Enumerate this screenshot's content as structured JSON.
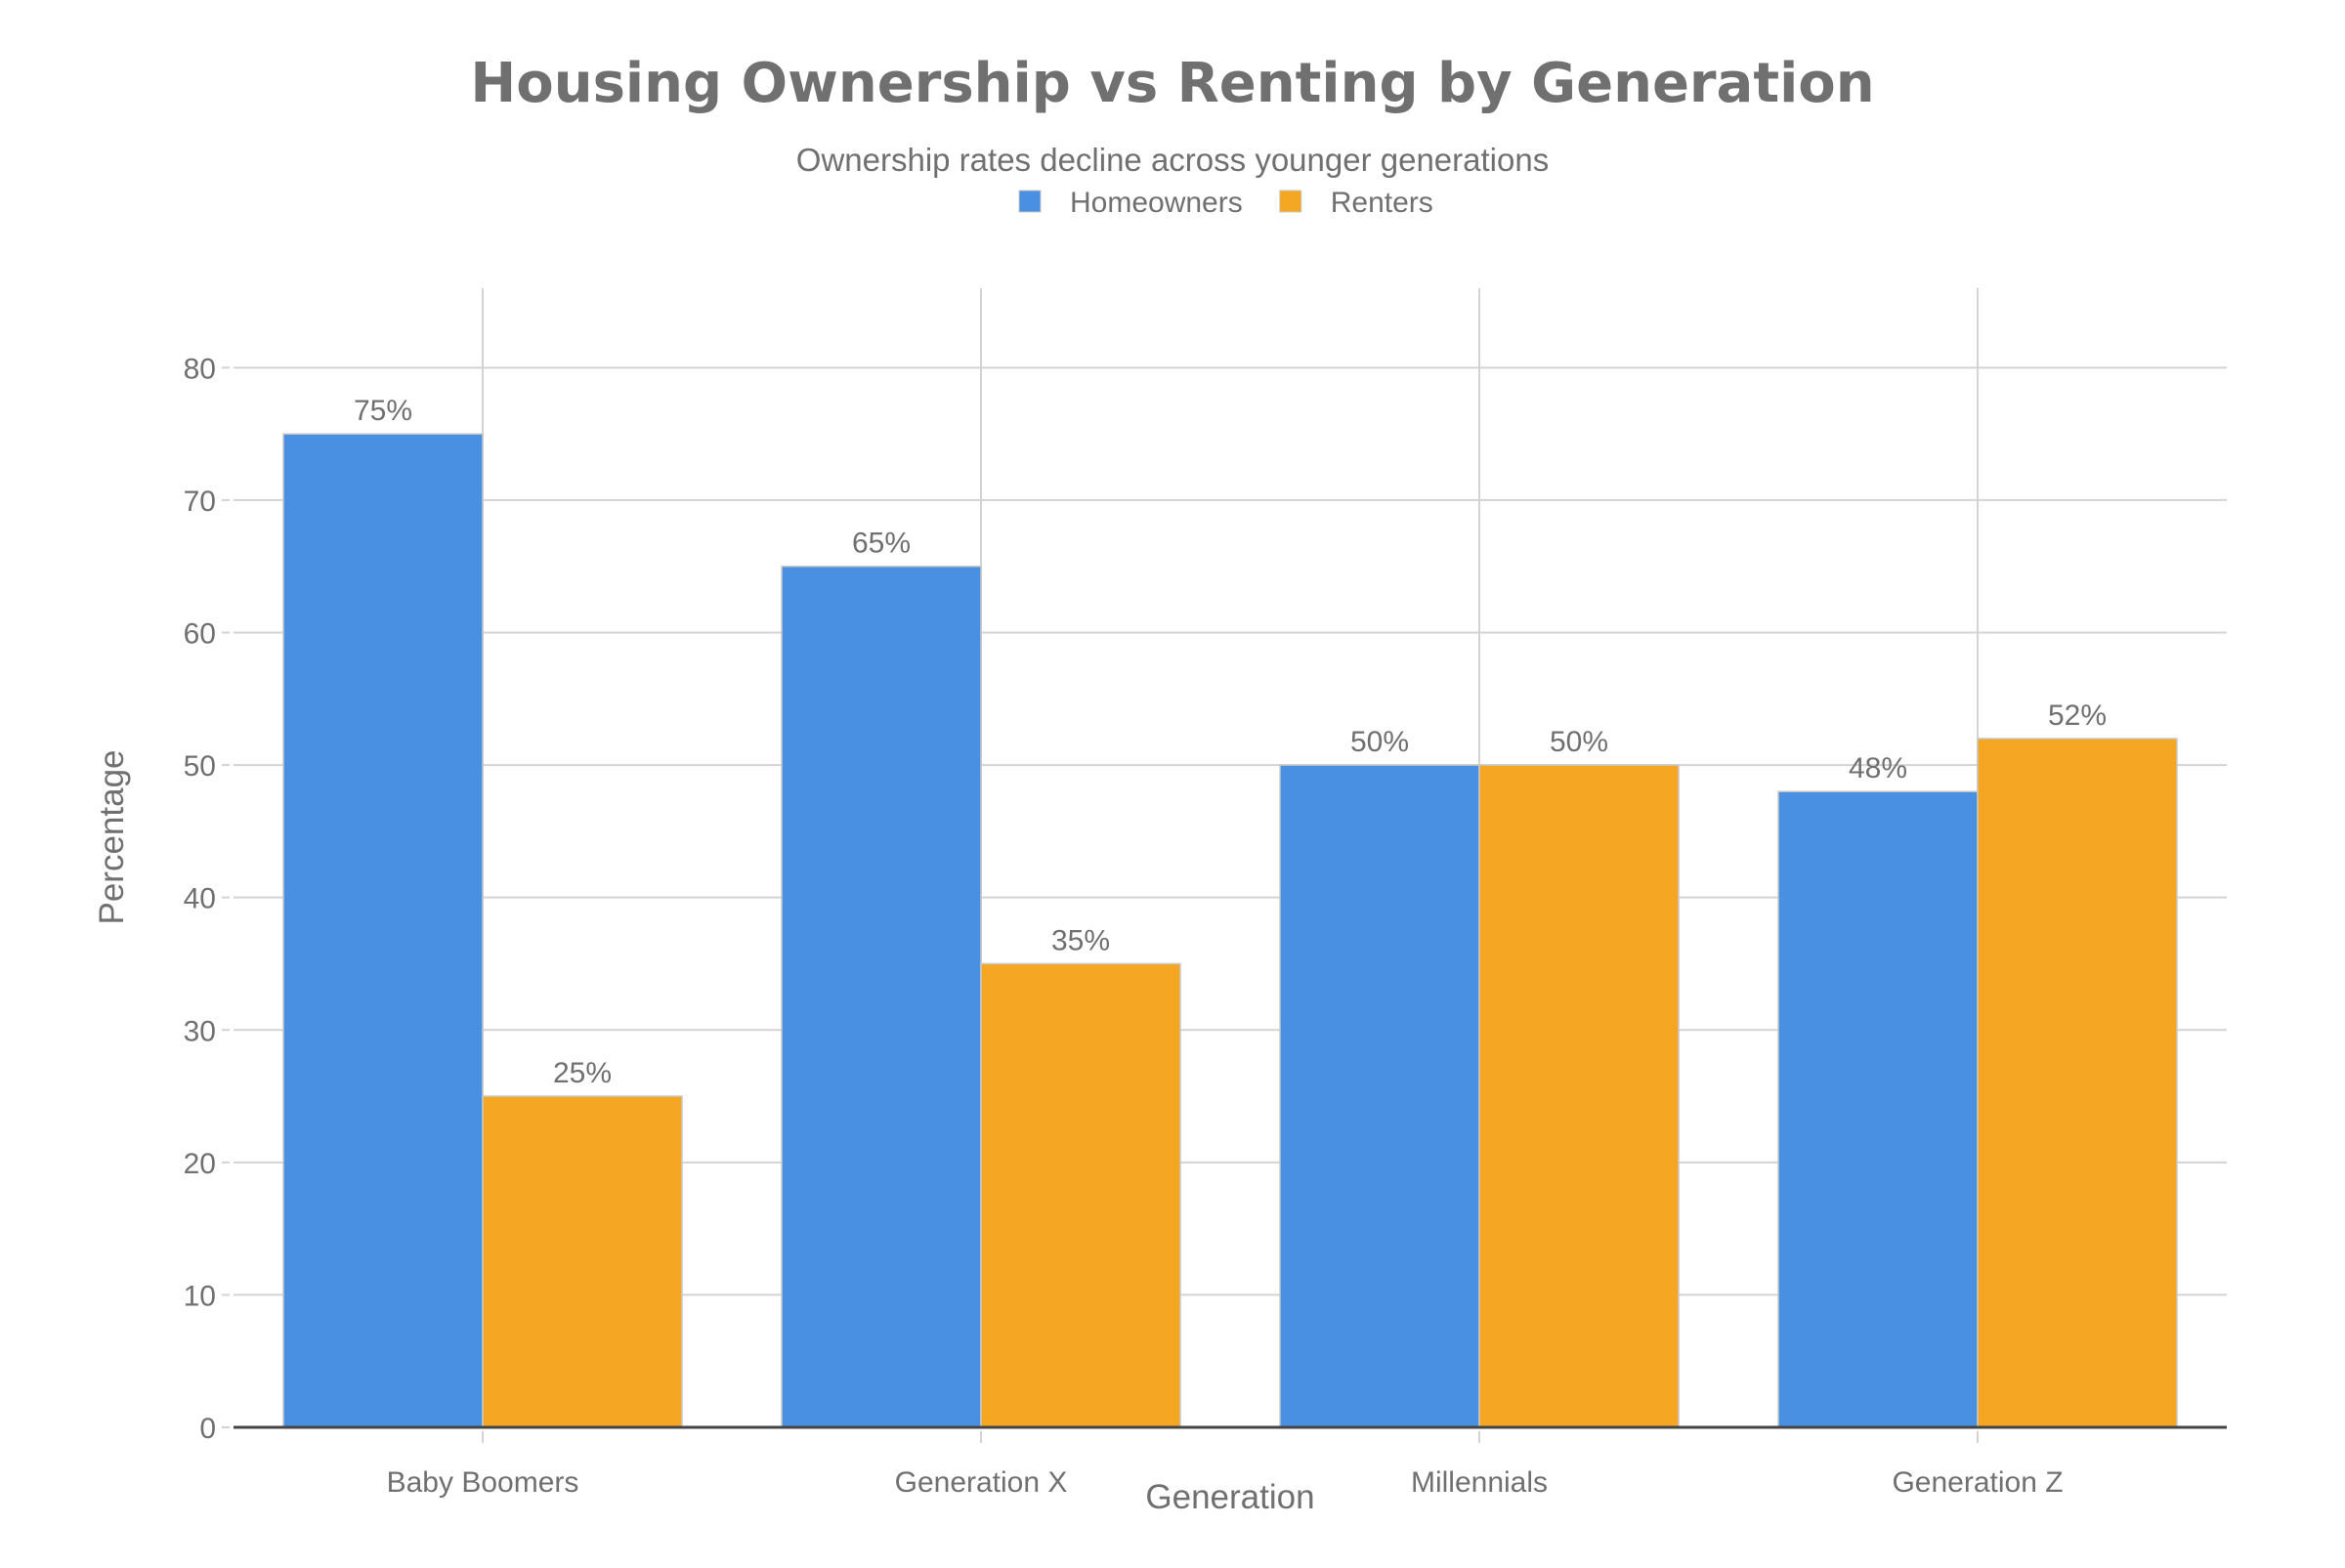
{
  "chart_data": {
    "type": "bar",
    "title": "Housing Ownership vs Renting by Generation",
    "subtitle": "Ownership rates decline across younger generations",
    "xlabel": "Generation",
    "ylabel": "Percentage",
    "categories": [
      "Baby Boomers",
      "Generation X",
      "Millennials",
      "Generation Z"
    ],
    "series": [
      {
        "name": "Homeowners",
        "color": "#4a90e2",
        "values": [
          75,
          65,
          50,
          48
        ],
        "labels": [
          "75%",
          "65%",
          "50%",
          "48%"
        ]
      },
      {
        "name": "Renters",
        "color": "#f5a623",
        "values": [
          25,
          35,
          50,
          52
        ],
        "labels": [
          "25%",
          "35%",
          "50%",
          "52%"
        ]
      }
    ],
    "ylim": [
      0,
      86
    ],
    "yticks": [
      0,
      10,
      20,
      30,
      40,
      50,
      60,
      70,
      80
    ],
    "grid": true,
    "legend": "top-center"
  }
}
